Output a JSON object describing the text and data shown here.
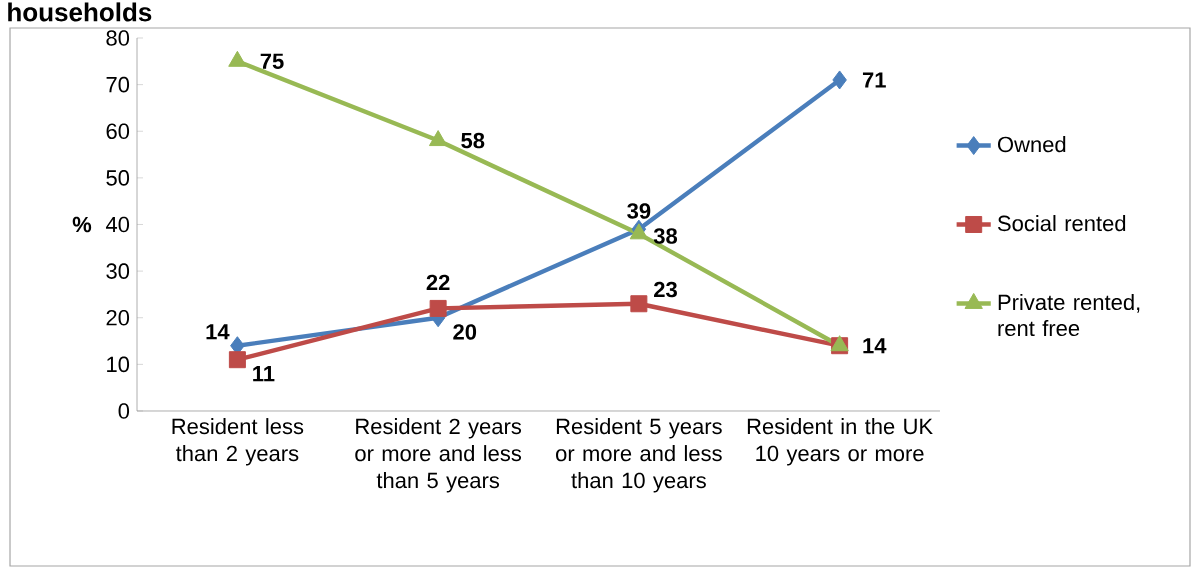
{
  "chart_data": {
    "type": "line",
    "title": "households",
    "ylabel": "%",
    "categories": [
      "Resident less than 2 years",
      "Resident 2 years or more and less than 5 years",
      "Resident 5 years or more and less than 10 years",
      "Resident in the UK 10 years or more"
    ],
    "series": [
      {
        "name": "Owned",
        "color": "#4a7ebb",
        "marker": "diamond",
        "values": [
          14,
          20,
          39,
          71
        ],
        "value_labels": [
          "14",
          "20",
          "39",
          "71"
        ]
      },
      {
        "name": "Social rented",
        "color": "#be4b48",
        "marker": "square",
        "values": [
          11,
          22,
          23,
          14
        ],
        "value_labels": [
          "11",
          "22",
          "23",
          "14"
        ]
      },
      {
        "name": "Private rented, rent free",
        "color": "#98b954",
        "marker": "triangle",
        "values": [
          75,
          58,
          38,
          14
        ],
        "value_labels": [
          "75",
          "58",
          "38",
          null
        ]
      }
    ],
    "ylim": [
      0,
      80
    ],
    "yticks": [
      0,
      10,
      20,
      30,
      40,
      50,
      60,
      70,
      80
    ],
    "grid": false,
    "legend": "right",
    "line_style": "solid"
  }
}
